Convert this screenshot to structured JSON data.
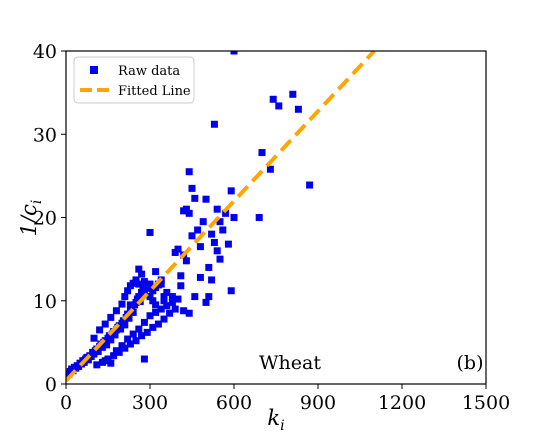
{
  "chart_data": {
    "type": "scatter",
    "title": "",
    "xlabel": "k",
    "xlabel_sub": "i",
    "ylabel": "1/c",
    "ylabel_sub": "i",
    "xlim": [
      0,
      1500
    ],
    "ylim": [
      0,
      40
    ],
    "xticks": [
      0,
      300,
      600,
      900,
      1200,
      1500
    ],
    "yticks": [
      0,
      10,
      20,
      30,
      40
    ],
    "grid": false,
    "legend_position": "top-left",
    "annotations": [
      "Wheat",
      "(b)"
    ],
    "series": [
      {
        "name": "Raw data",
        "kind": "scatter",
        "marker": "square",
        "color": "#0000ee",
        "points": [
          [
            10,
            1.2
          ],
          [
            15,
            1.5
          ],
          [
            20,
            1.8
          ],
          [
            25,
            1.6
          ],
          [
            30,
            2.0
          ],
          [
            35,
            1.9
          ],
          [
            40,
            2.2
          ],
          [
            45,
            2.1
          ],
          [
            50,
            2.5
          ],
          [
            55,
            2.4
          ],
          [
            60,
            2.8
          ],
          [
            65,
            2.6
          ],
          [
            70,
            3.0
          ],
          [
            75,
            3.2
          ],
          [
            80,
            2.9
          ],
          [
            85,
            3.4
          ],
          [
            90,
            3.3
          ],
          [
            95,
            3.8
          ],
          [
            100,
            3.6
          ],
          [
            105,
            4.0
          ],
          [
            110,
            4.2
          ],
          [
            115,
            3.9
          ],
          [
            120,
            4.5
          ],
          [
            125,
            4.8
          ],
          [
            130,
            4.4
          ],
          [
            135,
            5.0
          ],
          [
            140,
            5.2
          ],
          [
            145,
            4.7
          ],
          [
            150,
            5.5
          ],
          [
            155,
            5.8
          ],
          [
            160,
            5.3
          ],
          [
            165,
            6.0
          ],
          [
            170,
            6.3
          ],
          [
            175,
            5.9
          ],
          [
            180,
            6.5
          ],
          [
            185,
            6.8
          ],
          [
            190,
            7.0
          ],
          [
            195,
            6.6
          ],
          [
            200,
            7.3
          ],
          [
            205,
            7.6
          ],
          [
            210,
            7.1
          ],
          [
            215,
            8.0
          ],
          [
            220,
            8.4
          ],
          [
            225,
            7.9
          ],
          [
            230,
            8.8
          ],
          [
            235,
            9.1
          ],
          [
            240,
            8.6
          ],
          [
            245,
            9.5
          ],
          [
            250,
            9.8
          ],
          [
            255,
            10.2
          ],
          [
            260,
            10.5
          ],
          [
            265,
            9.9
          ],
          [
            270,
            11.0
          ],
          [
            275,
            11.4
          ],
          [
            280,
            10.8
          ],
          [
            285,
            11.8
          ],
          [
            290,
            12.0
          ],
          [
            100,
            5.5
          ],
          [
            120,
            6.5
          ],
          [
            140,
            7.2
          ],
          [
            160,
            8.0
          ],
          [
            180,
            8.8
          ],
          [
            200,
            9.6
          ],
          [
            210,
            10.5
          ],
          [
            220,
            11.2
          ],
          [
            230,
            11.8
          ],
          [
            240,
            12.1
          ],
          [
            250,
            12.5
          ],
          [
            260,
            12.0
          ],
          [
            270,
            13.2
          ],
          [
            130,
            2.6
          ],
          [
            150,
            3.0
          ],
          [
            170,
            3.4
          ],
          [
            190,
            3.8
          ],
          [
            210,
            4.3
          ],
          [
            230,
            4.8
          ],
          [
            250,
            5.2
          ],
          [
            270,
            5.8
          ],
          [
            290,
            6.2
          ],
          [
            310,
            6.8
          ],
          [
            330,
            7.2
          ],
          [
            350,
            7.8
          ],
          [
            110,
            2.3
          ],
          [
            140,
            2.8
          ],
          [
            160,
            2.5
          ],
          [
            180,
            4.0
          ],
          [
            200,
            4.6
          ],
          [
            220,
            5.4
          ],
          [
            240,
            6.0
          ],
          [
            260,
            6.6
          ],
          [
            280,
            7.4
          ],
          [
            300,
            8.2
          ],
          [
            320,
            8.6
          ],
          [
            340,
            9.0
          ],
          [
            360,
            9.4
          ],
          [
            380,
            9.8
          ],
          [
            300,
            10.5
          ],
          [
            310,
            11.2
          ],
          [
            320,
            11.6
          ],
          [
            330,
            11.9
          ],
          [
            340,
            12.0
          ],
          [
            280,
            12.3
          ],
          [
            290,
            11.5
          ],
          [
            300,
            12.0
          ],
          [
            310,
            10.0
          ],
          [
            320,
            9.5
          ],
          [
            350,
            10.0
          ],
          [
            360,
            11.0
          ],
          [
            370,
            8.5
          ],
          [
            380,
            10.5
          ],
          [
            390,
            9.0
          ],
          [
            400,
            10.2
          ],
          [
            410,
            11.8
          ],
          [
            420,
            8.8
          ],
          [
            280,
            3.0
          ],
          [
            300,
            18.2
          ],
          [
            330,
            12.0
          ],
          [
            350,
            10.5
          ],
          [
            390,
            15.8
          ],
          [
            400,
            16.2
          ],
          [
            410,
            13.0
          ],
          [
            420,
            15.5
          ],
          [
            430,
            14.8
          ],
          [
            440,
            20.5
          ],
          [
            450,
            17.8
          ],
          [
            420,
            20.8
          ],
          [
            430,
            21.0
          ],
          [
            440,
            25.5
          ],
          [
            450,
            23.5
          ],
          [
            460,
            22.3
          ],
          [
            470,
            18.5
          ],
          [
            480,
            16.5
          ],
          [
            490,
            19.5
          ],
          [
            500,
            22.2
          ],
          [
            510,
            14.0
          ],
          [
            520,
            12.5
          ],
          [
            530,
            17.0
          ],
          [
            540,
            16.0
          ],
          [
            550,
            15.0
          ],
          [
            560,
            18.5
          ],
          [
            570,
            20.5
          ],
          [
            580,
            16.8
          ],
          [
            590,
            23.2
          ],
          [
            600,
            20.0
          ],
          [
            510,
            10.5
          ],
          [
            500,
            9.8
          ],
          [
            480,
            12.8
          ],
          [
            460,
            10.5
          ],
          [
            440,
            8.5
          ],
          [
            590,
            11.2
          ],
          [
            550,
            19.5
          ],
          [
            540,
            21.0
          ],
          [
            520,
            18.0
          ],
          [
            530,
            31.2
          ],
          [
            600,
            40.0
          ],
          [
            690,
            20.0
          ],
          [
            700,
            27.8
          ],
          [
            730,
            25.8
          ],
          [
            740,
            34.2
          ],
          [
            760,
            33.4
          ],
          [
            810,
            34.8
          ],
          [
            830,
            33.0
          ],
          [
            870,
            23.9
          ],
          [
            320,
            13.5
          ],
          [
            340,
            12.5
          ],
          [
            260,
            13.8
          ],
          [
            270,
            11.0
          ],
          [
            230,
            9.5
          ]
        ]
      },
      {
        "name": "Fitted Line",
        "kind": "line",
        "style": "dashed",
        "color": "#ffa500",
        "x": [
          0,
          1101
        ],
        "y": [
          0.4,
          40
        ]
      }
    ]
  }
}
